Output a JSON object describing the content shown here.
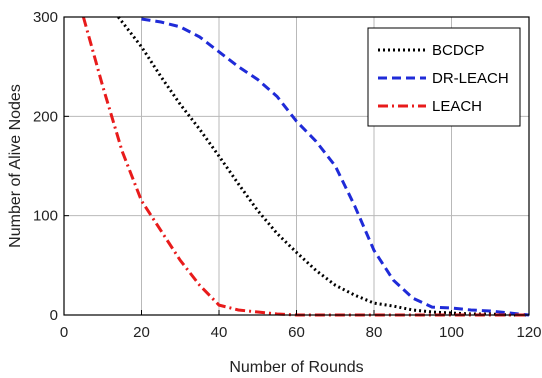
{
  "chart_data": {
    "type": "line",
    "title": "",
    "xlabel": "Number of Rounds",
    "ylabel": "Number of Alive Nodes",
    "xlim": [
      0,
      120
    ],
    "ylim": [
      0,
      300
    ],
    "x_ticks": [
      "0",
      "20",
      "40",
      "60",
      "80",
      "100",
      "120"
    ],
    "y_ticks": [
      "0",
      "100",
      "200",
      "300"
    ],
    "grid": true,
    "legend_position": "top-right",
    "series": [
      {
        "name": "BCDCP",
        "color": "#000000",
        "style": "dotted",
        "x": [
          14,
          20,
          25,
          30,
          35,
          40,
          45,
          50,
          55,
          60,
          65,
          70,
          75,
          80,
          85,
          90,
          95,
          100,
          105,
          110,
          115,
          120
        ],
        "y": [
          300,
          270,
          240,
          212,
          187,
          160,
          132,
          105,
          82,
          63,
          45,
          30,
          20,
          12,
          9,
          5,
          3,
          2,
          1,
          1,
          0,
          0
        ]
      },
      {
        "name": "DR-LEACH",
        "color": "#1f2bd8",
        "style": "dashed",
        "x": [
          20,
          25,
          30,
          35,
          40,
          45,
          50,
          55,
          60,
          65,
          70,
          75,
          80,
          85,
          90,
          95,
          100,
          105,
          110,
          115,
          120
        ],
        "y": [
          298,
          295,
          290,
          280,
          265,
          250,
          237,
          220,
          195,
          175,
          150,
          110,
          65,
          35,
          17,
          8,
          7,
          5,
          4,
          2,
          0
        ]
      },
      {
        "name": "LEACH",
        "color": "#e81b1b",
        "style": "dashdot",
        "x": [
          5,
          10,
          15,
          20,
          25,
          30,
          35,
          40,
          45,
          50,
          55,
          60,
          80,
          100,
          120
        ],
        "y": [
          300,
          230,
          165,
          115,
          85,
          55,
          30,
          10,
          5,
          3,
          1,
          0,
          0,
          0,
          0
        ]
      }
    ]
  }
}
